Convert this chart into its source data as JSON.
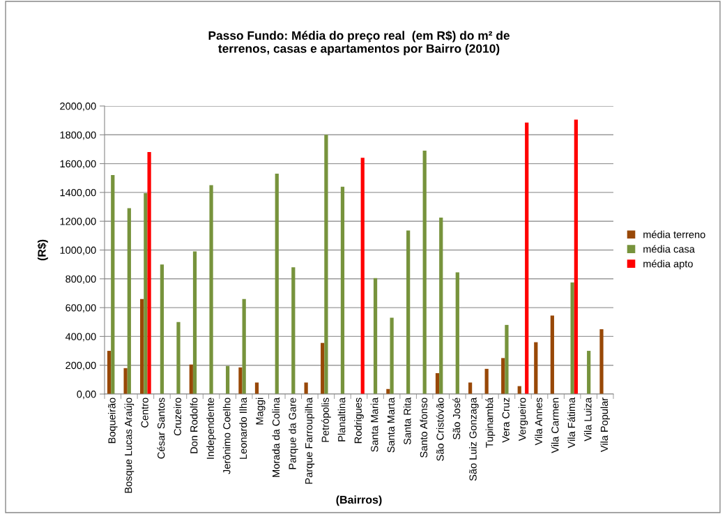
{
  "chart_data": {
    "type": "bar",
    "title": "Passo Fundo: Média do preço real  (em R$) do m² de\nterrenos, casas e apartamentos por Bairro (2010)",
    "xlabel": "(Bairros)",
    "ylabel": "(R$)",
    "categories": [
      "Boqueirão",
      "Bosque Lucas Araújo",
      "Centro",
      "César Santos",
      "Cruzeiro",
      "Don Rodolfo",
      "Independente",
      "Jerônimo Coelho",
      "Leonardo Ilha",
      "Maggi",
      "Morada da Colina",
      "Parque da Gare",
      "Parque Farroupilha",
      "Petrópolis",
      "Planaltina",
      "Rodrigues",
      "Santa Maria",
      "Santa Marta",
      "Santa Rita",
      "Santo Afonso",
      "São Cristóvão",
      "São José",
      "São Luiz Gonzaga",
      "Tupinambá",
      "Vera Cruz",
      "Vergueiro",
      "Vila Annes",
      "Vila Carmen",
      "Vila Fátima",
      "Vila Luiza",
      "Vila Popular"
    ],
    "series": [
      {
        "name": "média terreno",
        "color": "#984807",
        "values": [
          300,
          180,
          660,
          null,
          null,
          205,
          null,
          null,
          185,
          80,
          null,
          null,
          80,
          355,
          null,
          null,
          null,
          35,
          null,
          null,
          145,
          null,
          80,
          175,
          250,
          55,
          360,
          545,
          null,
          null,
          450
        ]
      },
      {
        "name": "média casa",
        "color": "#77933c",
        "values": [
          1520,
          1290,
          1395,
          900,
          500,
          990,
          1450,
          195,
          660,
          null,
          1530,
          880,
          null,
          1800,
          1440,
          null,
          805,
          530,
          1135,
          1690,
          1225,
          845,
          null,
          null,
          480,
          null,
          null,
          null,
          775,
          300,
          null
        ]
      },
      {
        "name": "média apto",
        "color": "#ff0000",
        "values": [
          null,
          null,
          1680,
          null,
          null,
          null,
          null,
          null,
          null,
          null,
          null,
          null,
          null,
          null,
          null,
          1640,
          null,
          null,
          null,
          null,
          null,
          null,
          null,
          null,
          null,
          1885,
          null,
          null,
          1905,
          null,
          null
        ]
      }
    ],
    "ylim": [
      0,
      2000
    ],
    "yticks": [
      {
        "value": 0,
        "label": "0,00"
      },
      {
        "value": 200,
        "label": "200,00"
      },
      {
        "value": 400,
        "label": "400,00"
      },
      {
        "value": 600,
        "label": "600,00"
      },
      {
        "value": 800,
        "label": "800,00"
      },
      {
        "value": 1000,
        "label": "1000,00"
      },
      {
        "value": 1200,
        "label": "1200,00"
      },
      {
        "value": 1400,
        "label": "1400,00"
      },
      {
        "value": 1600,
        "label": "1600,00"
      },
      {
        "value": 1800,
        "label": "1800,00"
      },
      {
        "value": 2000,
        "label": "2000,00"
      }
    ],
    "grid": "y",
    "legend": "right"
  }
}
